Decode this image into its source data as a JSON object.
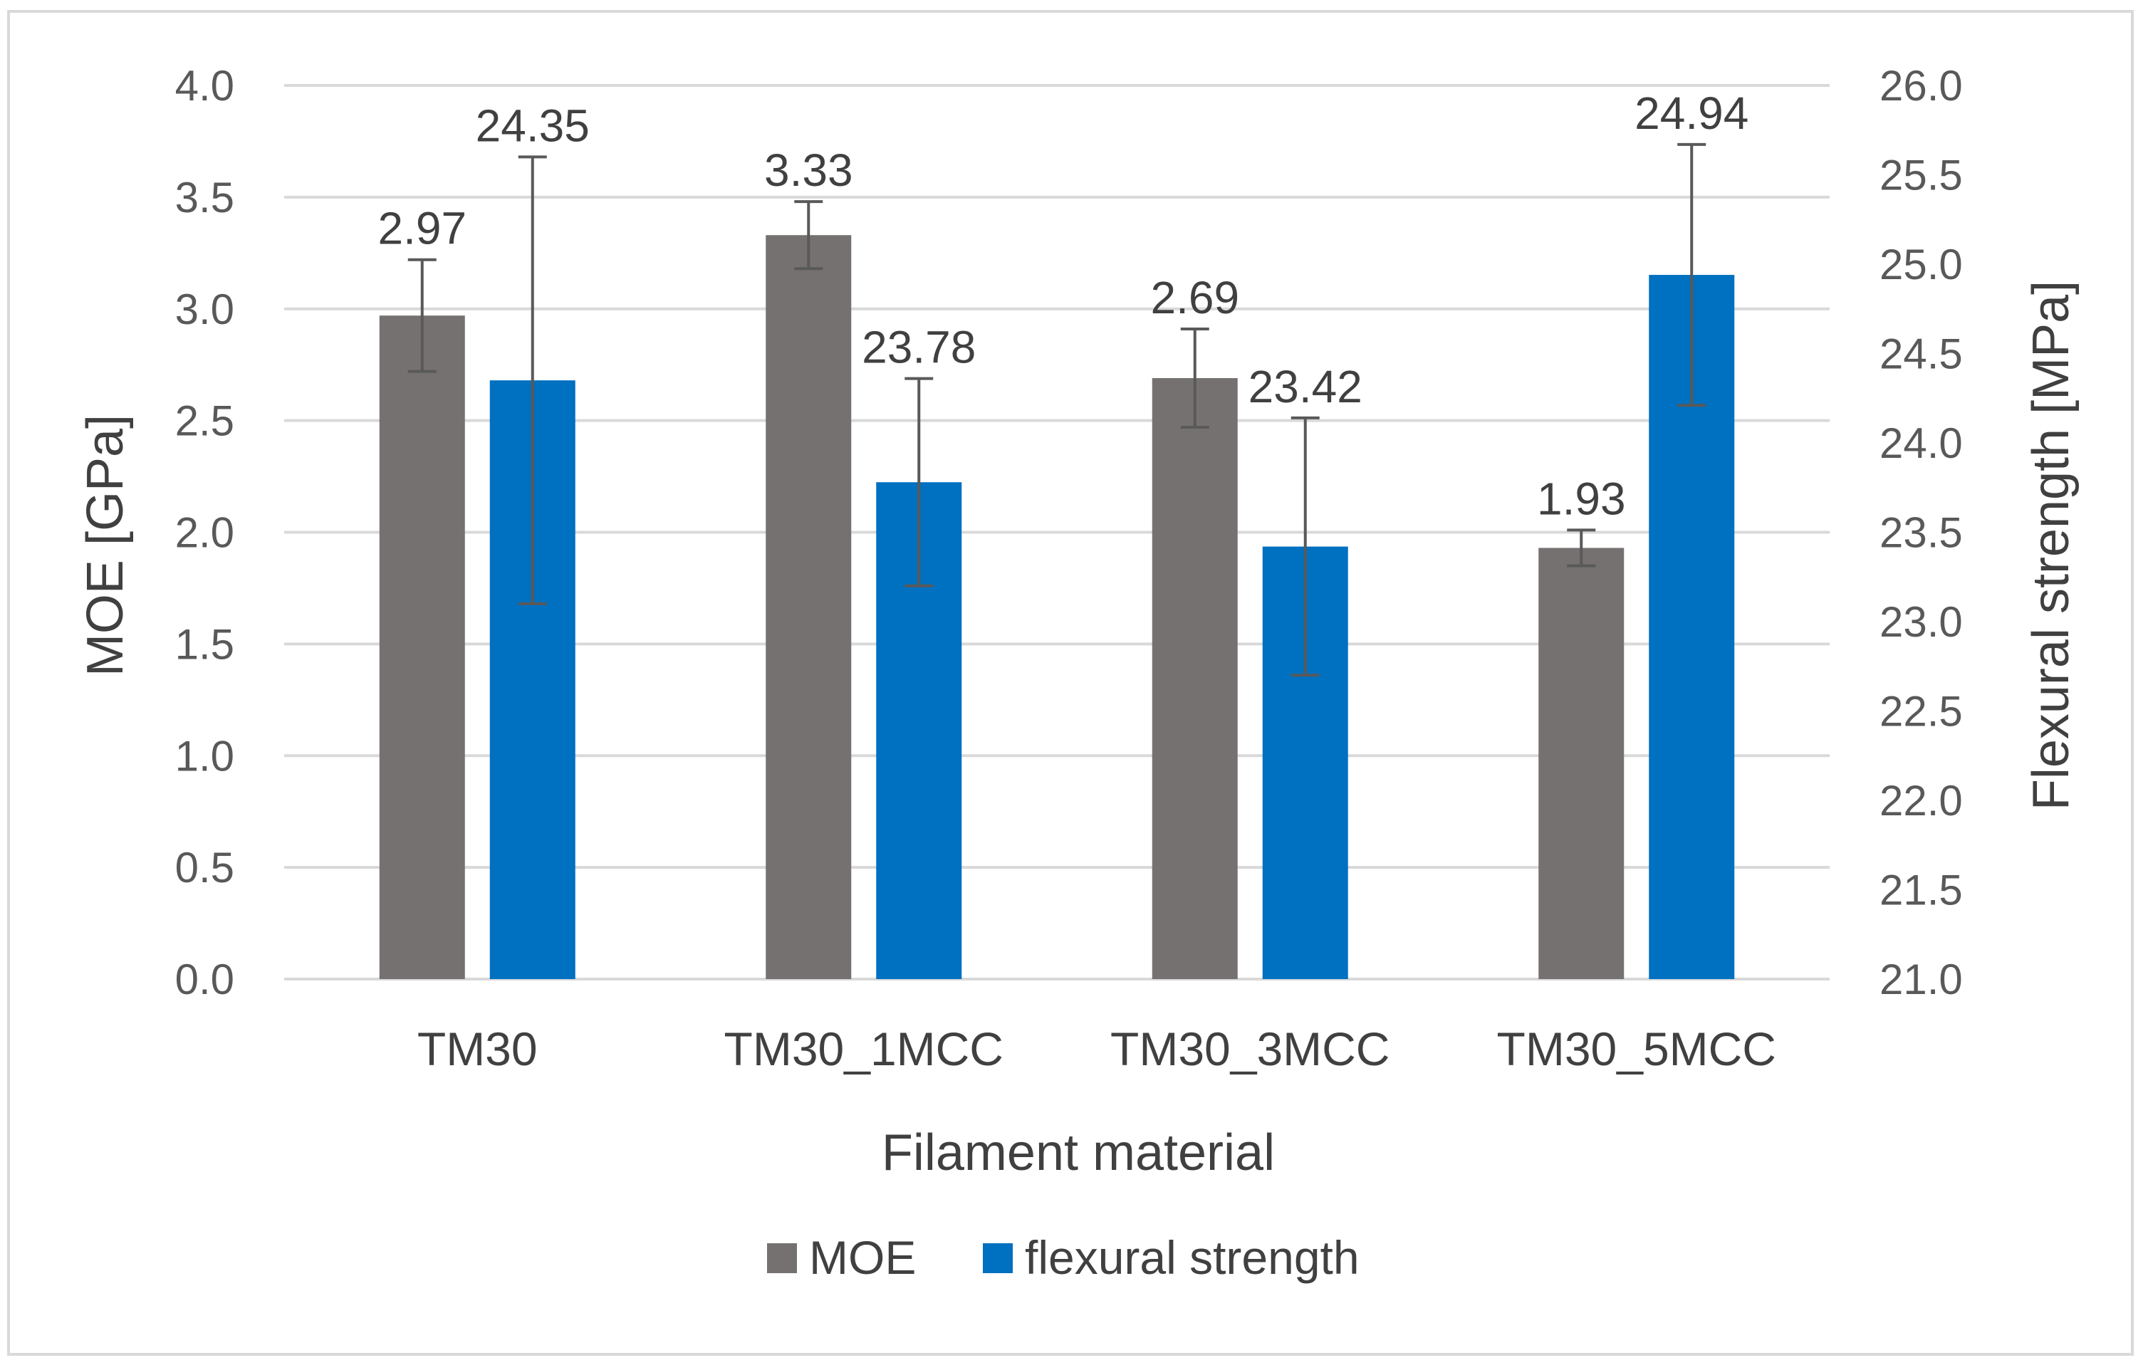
{
  "chart_data": {
    "type": "bar",
    "title": "",
    "xlabel": "Filament material",
    "ylabel": "MOE [GPa]",
    "y2label": "Flexural strength [MPa]",
    "categories": [
      "TM30",
      "TM30_1MCC",
      "TM30_3MCC",
      "TM30_5MCC"
    ],
    "ylim": [
      0.0,
      4.0
    ],
    "y2lim": [
      21.0,
      26.0
    ],
    "yticks": [
      "0.0",
      "0.5",
      "1.0",
      "1.5",
      "2.0",
      "2.5",
      "3.0",
      "3.5",
      "4.0"
    ],
    "y2ticks": [
      "21.0",
      "21.5",
      "22.0",
      "22.5",
      "23.0",
      "23.5",
      "24.0",
      "24.5",
      "25.0",
      "25.5",
      "26.0"
    ],
    "grid": true,
    "legend_position": "bottom",
    "series": [
      {
        "name": "MOE",
        "axis": "left",
        "color": "#767171",
        "values": [
          2.97,
          3.33,
          2.69,
          1.93
        ],
        "labels": [
          "2.97",
          "3.33",
          "2.69",
          "1.93"
        ],
        "errors": [
          0.25,
          0.15,
          0.22,
          0.08
        ]
      },
      {
        "name": "flexural strength",
        "axis": "right",
        "color": "#0070C0",
        "values": [
          24.35,
          23.78,
          23.42,
          24.94
        ],
        "labels": [
          "24.35",
          "23.78",
          "23.42",
          "24.94"
        ],
        "errors": [
          1.25,
          0.58,
          0.72,
          0.73
        ]
      }
    ]
  }
}
